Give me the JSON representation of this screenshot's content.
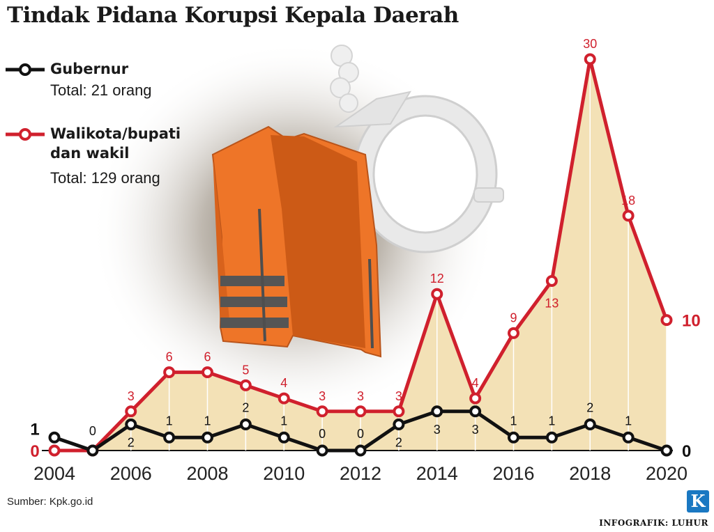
{
  "title": "Tindak Pidana Korupsi Kepala Daerah",
  "legend": {
    "gubernur": {
      "name": "Gubernur",
      "total": "Total: 21 orang"
    },
    "walikota": {
      "name_line1": "Walikota/bupati",
      "name_line2": "dan wakil",
      "total": "Total: 129 orang"
    }
  },
  "source": "Sumber: Kpk.go.id",
  "credit": "INFOGRAFIK: LUHUR",
  "logo_letter": "K",
  "colors": {
    "gubernur": "#111111",
    "walikota": "#d0202d",
    "area_fill": "#f3e1b6",
    "vest": "#ee7528"
  },
  "chart_data": {
    "type": "line",
    "x": [
      2004,
      2005,
      2006,
      2007,
      2008,
      2009,
      2010,
      2011,
      2012,
      2013,
      2014,
      2015,
      2016,
      2017,
      2018,
      2019,
      2020
    ],
    "x_tick_labels": [
      "2004",
      "2006",
      "2008",
      "2010",
      "2012",
      "2014",
      "2016",
      "2018",
      "2020"
    ],
    "series": [
      {
        "name": "Gubernur",
        "values": [
          1,
          0,
          2,
          1,
          1,
          2,
          1,
          0,
          0,
          2,
          3,
          3,
          1,
          1,
          2,
          1,
          0
        ]
      },
      {
        "name": "Walikota/bupati dan wakil",
        "values": [
          0,
          0,
          3,
          6,
          6,
          5,
          4,
          3,
          3,
          3,
          12,
          4,
          9,
          13,
          30,
          18,
          10
        ]
      }
    ],
    "ylim": [
      0,
      30
    ],
    "grid": false,
    "legend_position": "top-left"
  }
}
